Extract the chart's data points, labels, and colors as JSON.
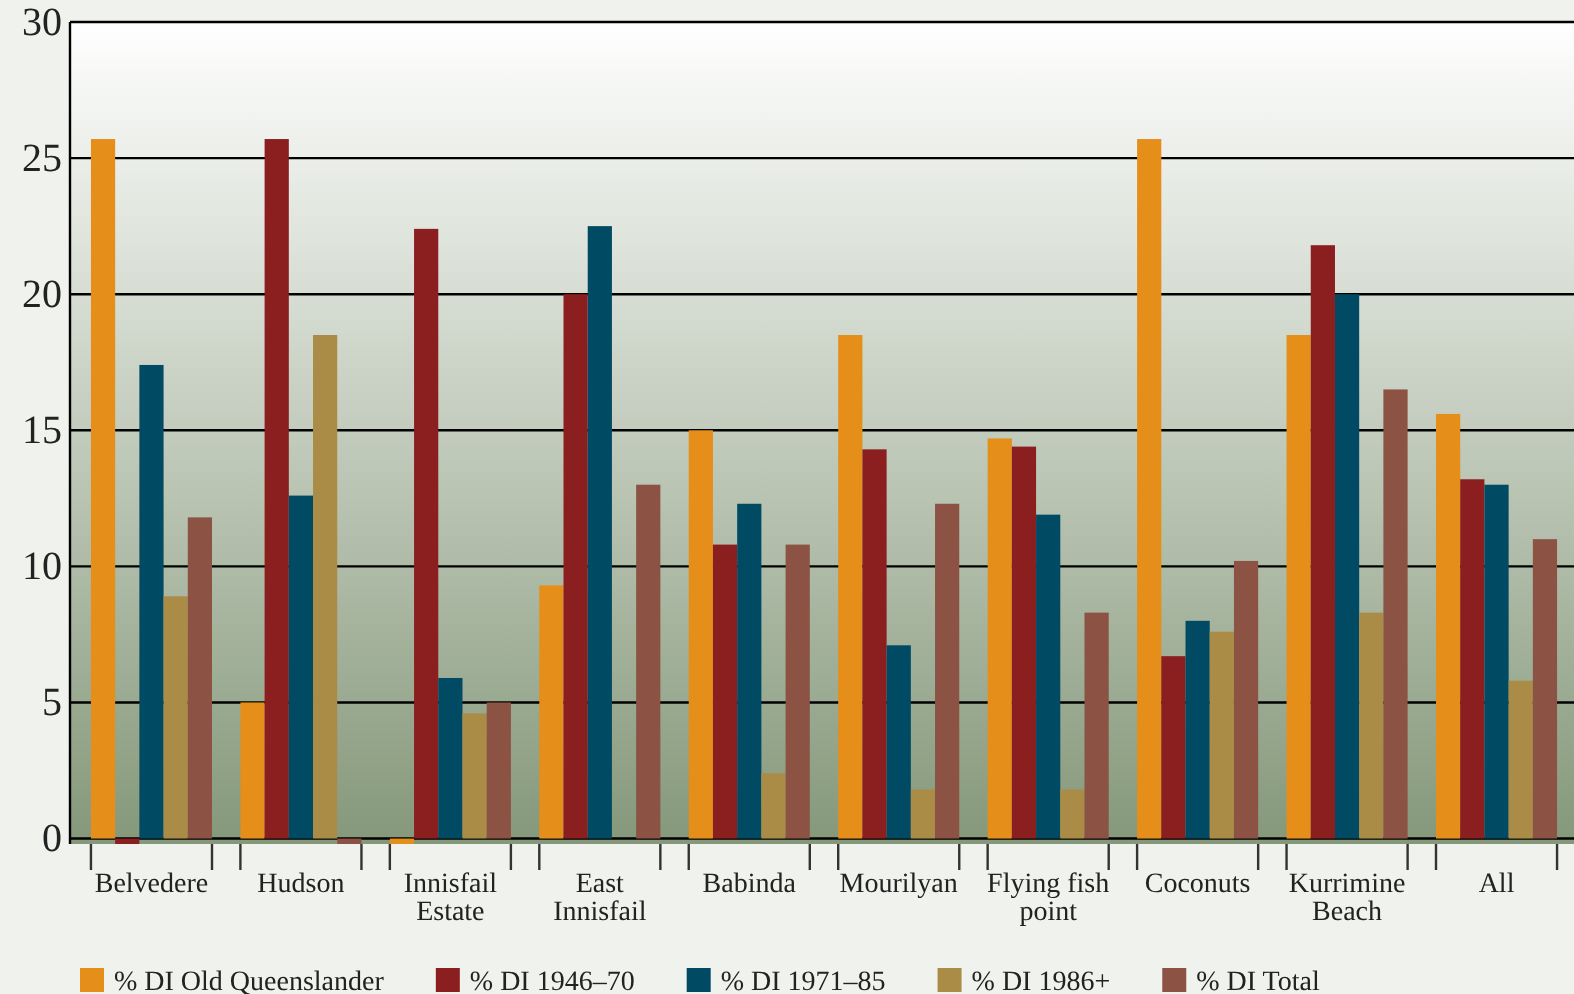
{
  "chart_data": {
    "type": "bar",
    "categories": [
      "Belvedere",
      "Hudson",
      "Innisfail Estate",
      "East Innisfail",
      "Babinda",
      "Mourilyan",
      "Flying fish point",
      "Coconuts",
      "Kurrimine Beach",
      "All"
    ],
    "series": [
      {
        "name": "% DI Old Queenslander",
        "color": "#e58e1a",
        "values": [
          25.7,
          5.0,
          -0.2,
          9.3,
          15.0,
          18.5,
          14.7,
          25.7,
          18.5,
          15.6
        ]
      },
      {
        "name": "% DI 1946–70",
        "color": "#8b1e1f",
        "values": [
          -0.2,
          25.7,
          22.4,
          20.0,
          10.8,
          14.3,
          14.4,
          6.7,
          21.8,
          13.2
        ]
      },
      {
        "name": "% DI 1971–85",
        "color": "#004a63",
        "values": [
          17.4,
          12.6,
          5.9,
          22.5,
          12.3,
          7.1,
          11.9,
          8.0,
          20.0,
          13.0
        ]
      },
      {
        "name": "% DI 1986+",
        "color": "#ab8c46",
        "values": [
          8.9,
          18.5,
          4.6,
          0,
          2.4,
          1.8,
          1.8,
          7.6,
          8.3,
          5.8
        ]
      },
      {
        "name": "% DI Total",
        "color": "#8c5244",
        "values": [
          11.8,
          -0.2,
          5.0,
          13.0,
          10.8,
          12.3,
          8.3,
          10.2,
          16.5,
          11.0
        ]
      }
    ],
    "ylim": [
      -0.2,
      30
    ],
    "yticks": [
      0,
      5,
      10,
      15,
      20,
      25,
      30
    ],
    "grid": "y",
    "legend": "bottom"
  }
}
